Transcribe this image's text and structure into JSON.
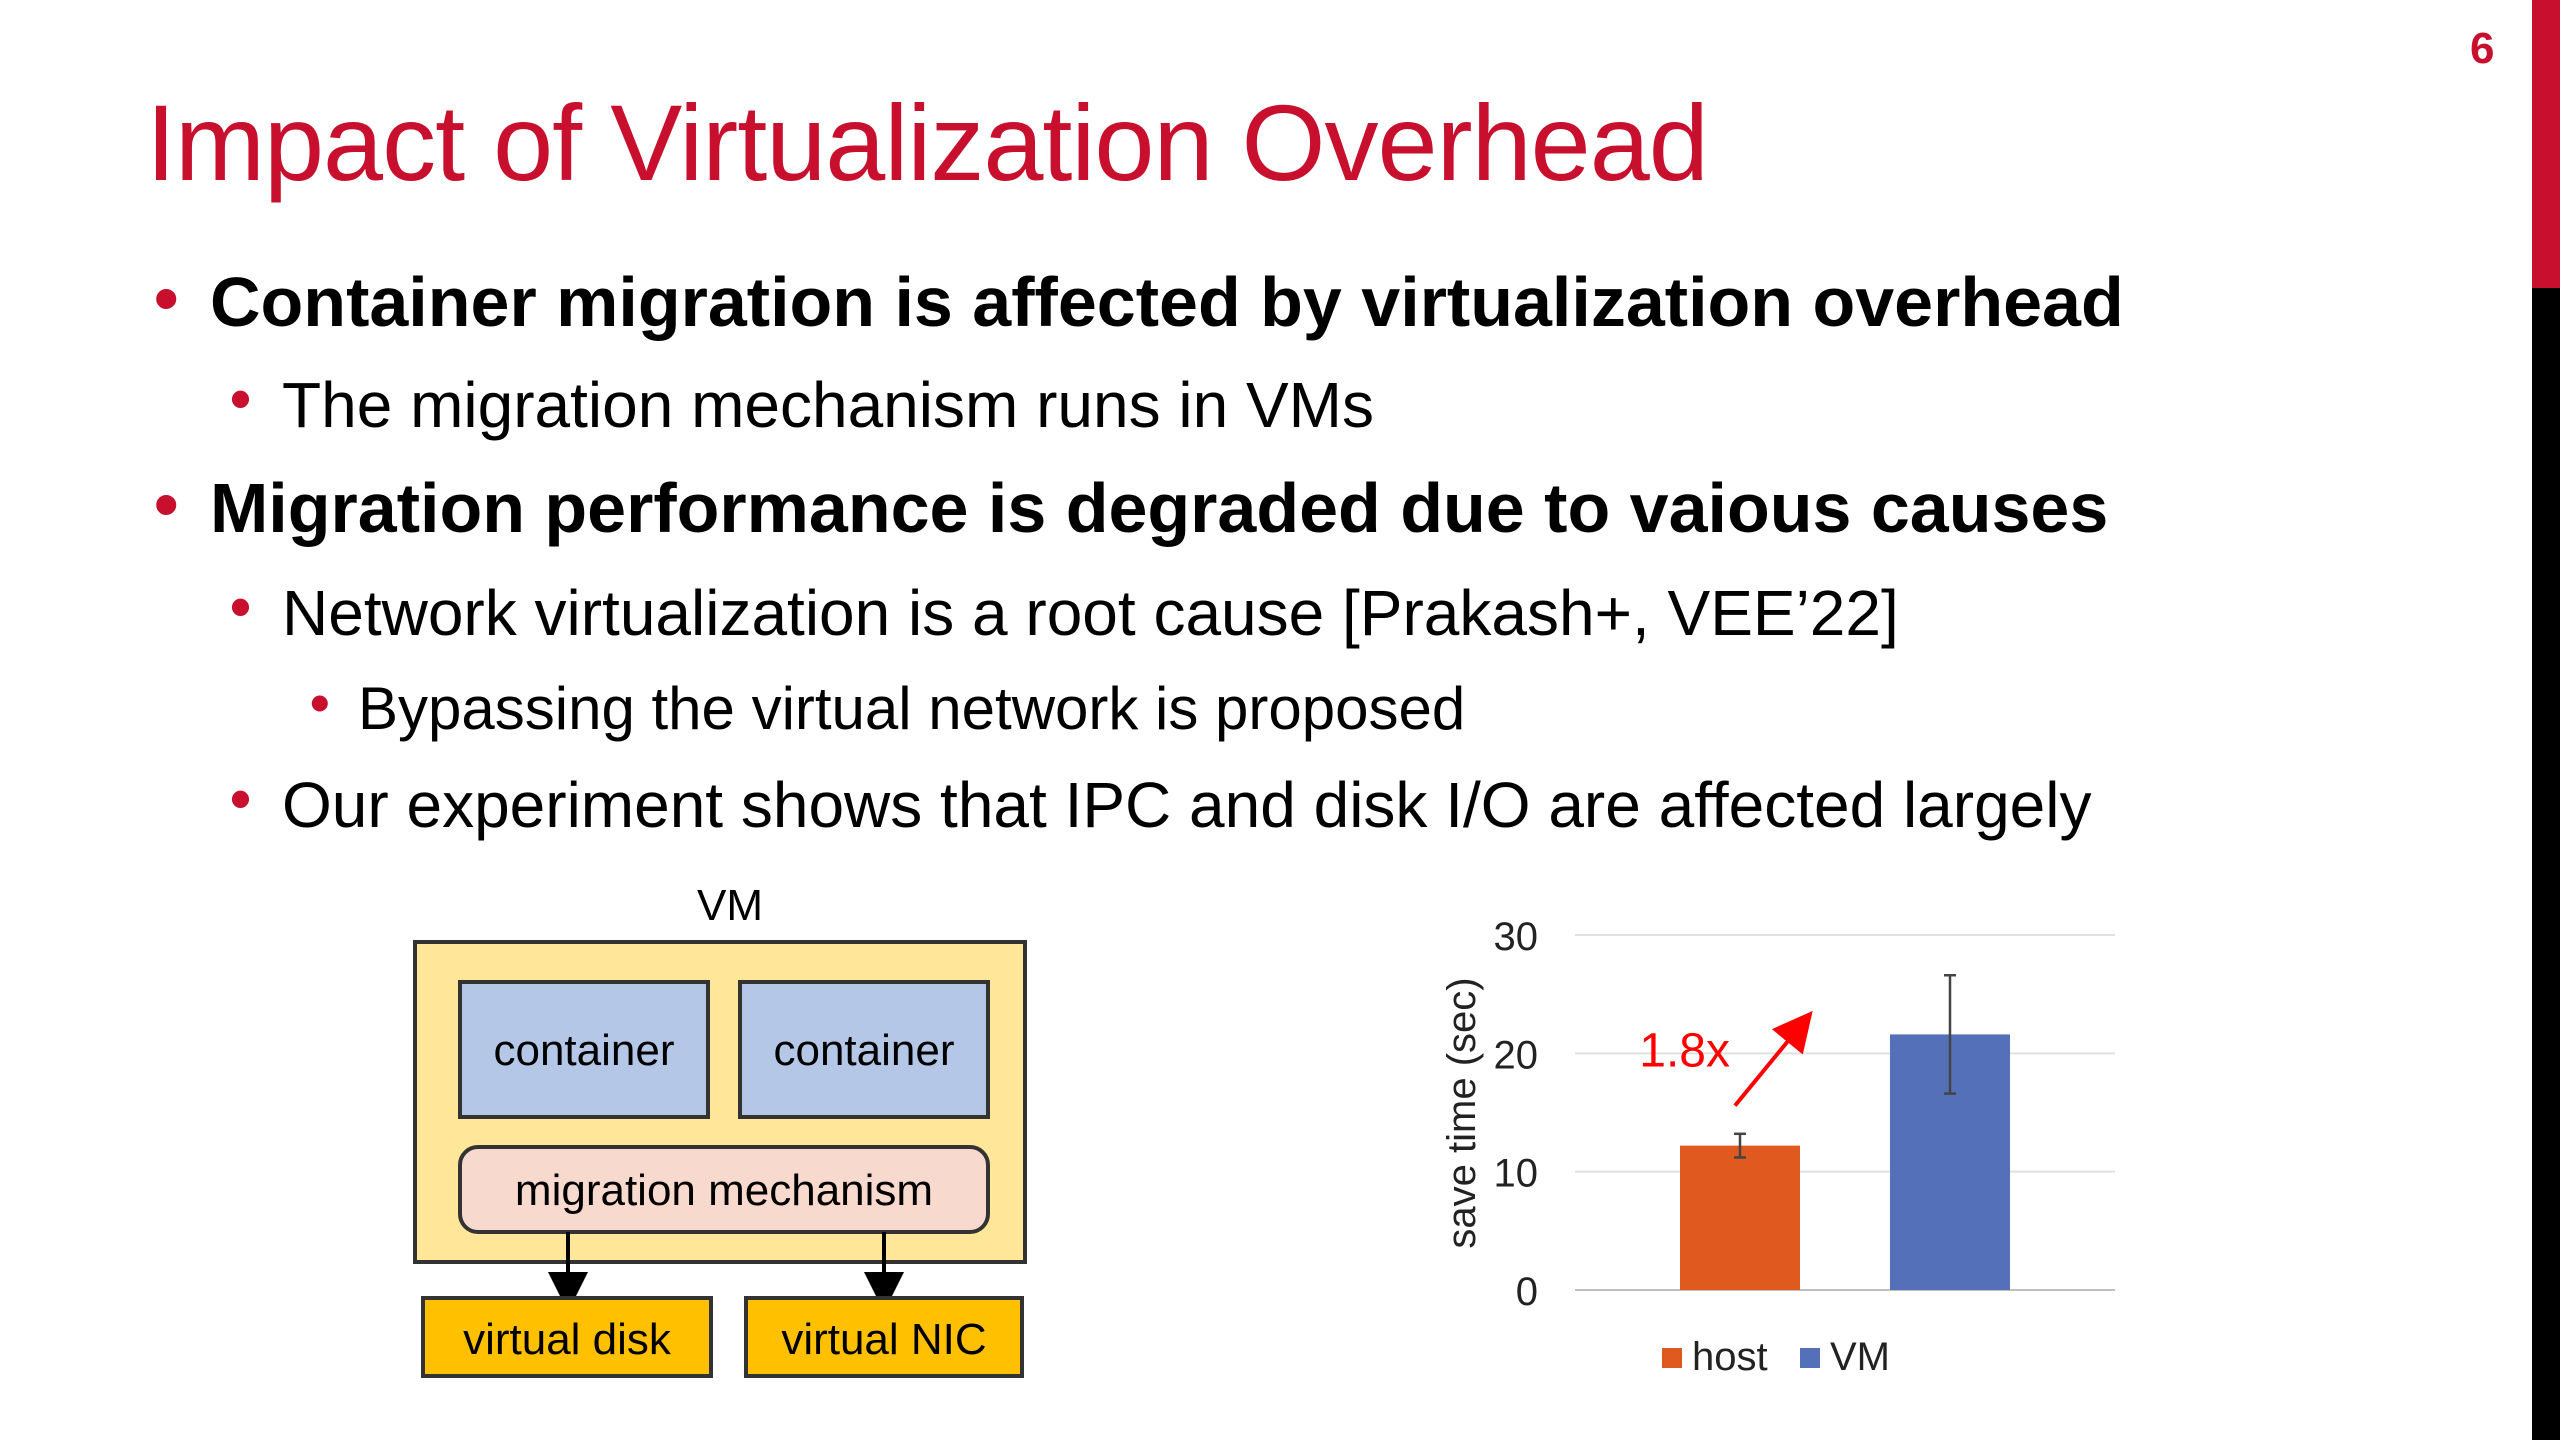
{
  "slide": {
    "page_number": "6",
    "title": "Impact of Virtualization Overhead",
    "bullets": [
      {
        "level": 1,
        "text": "Container migration is affected by virtualization overhead"
      },
      {
        "level": 2,
        "text": "The migration mechanism runs in VMs"
      },
      {
        "level": 1,
        "text": "Migration performance is degraded due to vaious causes"
      },
      {
        "level": 2,
        "text": "Network virtualization is a root cause [Prakash+, VEE’22]"
      },
      {
        "level": 3,
        "text": "Bypassing the virtual network is proposed"
      },
      {
        "level": 2,
        "text": "Our experiment shows that IPC and disk I/O are affected largely"
      }
    ],
    "accent_color": "#c8102e"
  },
  "diagram": {
    "vm_label": "VM",
    "container_1": "container",
    "container_2": "container",
    "mechanism": "migration mechanism",
    "virtual_disk": "virtual disk",
    "virtual_nic": "virtual NIC",
    "colors": {
      "vm_fill": "#ffe699",
      "container_fill": "#b4c7e7",
      "mechanism_fill": "#f8d9cd",
      "device_fill": "#ffc000"
    }
  },
  "chart_data": {
    "type": "bar",
    "categories": [
      "host",
      "VM"
    ],
    "values": [
      12.2,
      21.6
    ],
    "error": [
      1.0,
      5.0
    ],
    "colors": [
      "#e05a20",
      "#5470b8"
    ],
    "ylabel": "save time (sec)",
    "ylim": [
      0,
      30
    ],
    "yticks": [
      "0",
      "10",
      "20",
      "30"
    ],
    "legend": [
      "host",
      "VM"
    ],
    "legend_position": "bottom",
    "annotation": "1.8x",
    "grid": true
  }
}
